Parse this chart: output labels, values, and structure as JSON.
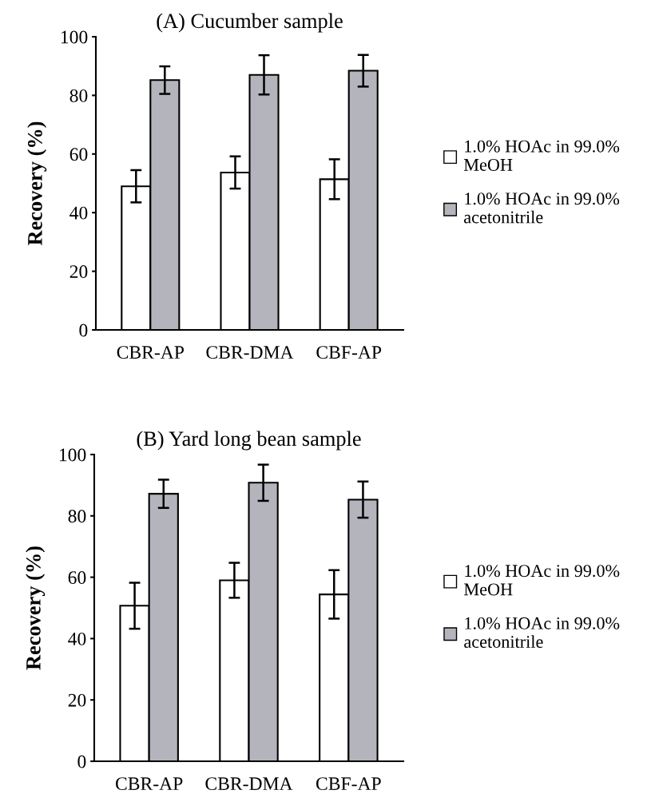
{
  "chart_data": [
    {
      "type": "bar",
      "title": "(A) Cucumber sample",
      "ylabel": "Recovery (%)",
      "categories": [
        "CBR-AP",
        "CBR-DMA",
        "CBF-AP"
      ],
      "ylim": [
        0,
        100
      ],
      "yticks": [
        0,
        20,
        40,
        60,
        80,
        100
      ],
      "legend": "right",
      "grid": false,
      "series": [
        {
          "name": "1.0% HOAc in 99.0% MeOH",
          "color": "#ffffff",
          "values": [
            49.0,
            53.7,
            51.4
          ],
          "errors": [
            5.5,
            5.5,
            6.8
          ]
        },
        {
          "name": "1.0% HOAc in 99.0% acetonitrile",
          "color": "#b4b4bc",
          "values": [
            85.2,
            87.0,
            88.4
          ],
          "errors": [
            4.7,
            6.7,
            5.4
          ]
        }
      ]
    },
    {
      "type": "bar",
      "title": "(B) Yard long bean sample",
      "ylabel": "Recovery (%)",
      "categories": [
        "CBR-AP",
        "CBR-DMA",
        "CBF-AP"
      ],
      "ylim": [
        0,
        100
      ],
      "yticks": [
        0,
        20,
        40,
        60,
        80,
        100
      ],
      "legend": "right",
      "grid": false,
      "series": [
        {
          "name": "1.0% HOAc in 99.0% MeOH",
          "color": "#ffffff",
          "values": [
            50.7,
            59.0,
            54.4
          ],
          "errors": [
            7.5,
            5.7,
            7.9
          ]
        },
        {
          "name": "1.0% HOAc in 99.0% acetonitrile",
          "color": "#b4b4bc",
          "values": [
            87.2,
            90.8,
            85.3
          ],
          "errors": [
            4.6,
            5.9,
            5.9
          ]
        }
      ]
    }
  ]
}
